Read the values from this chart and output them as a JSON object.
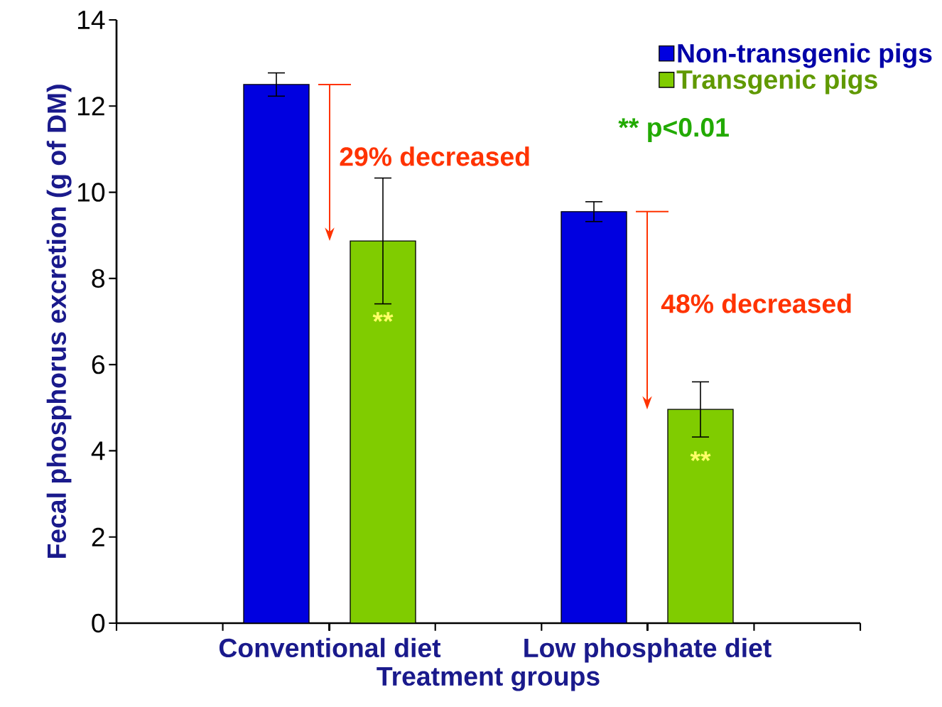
{
  "chart_data": {
    "type": "bar",
    "xlabel": "Treatment groups",
    "ylabel": "Fecal phosphorus excretion (g of DM)",
    "categories": [
      "Conventional diet",
      "Low phosphate diet"
    ],
    "series": [
      {
        "name": "Non-transgenic pigs",
        "color": "#0000e0",
        "values": [
          12.5,
          9.55
        ],
        "errors": [
          0.27,
          0.23
        ]
      },
      {
        "name": "Transgenic pigs",
        "color": "#80cc00",
        "values": [
          8.87,
          4.96
        ],
        "errors": [
          1.46,
          0.64
        ]
      }
    ],
    "ylim": [
      0,
      14
    ],
    "yticks": [
      0,
      2,
      4,
      6,
      8,
      10,
      12,
      14
    ],
    "legend": "top right",
    "annotations": [
      "29% decreased",
      "48% decreased",
      "** p<0.01",
      "**",
      "**"
    ]
  }
}
